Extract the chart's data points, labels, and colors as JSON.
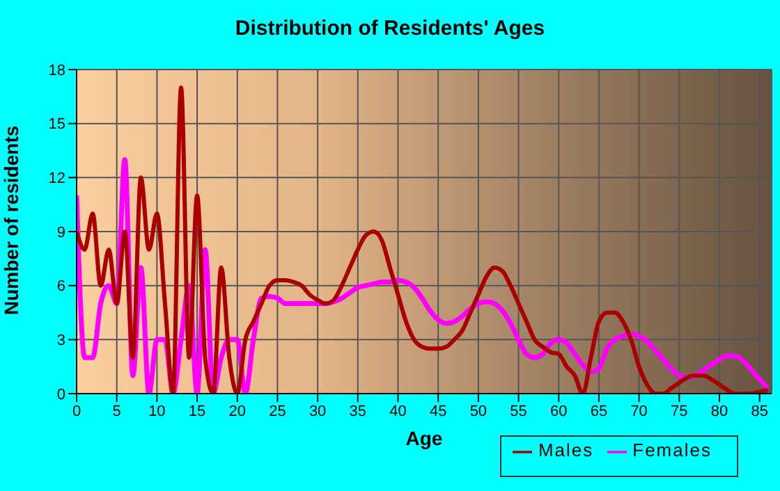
{
  "chart_data": {
    "type": "line",
    "title": "Distribution of Residents' Ages",
    "xlabel": "Age",
    "ylabel": "Number of residents",
    "x": [
      0,
      1,
      2,
      3,
      4,
      5,
      6,
      7,
      8,
      9,
      10,
      11,
      12,
      13,
      14,
      15,
      16,
      17,
      18,
      19,
      20,
      21,
      22,
      23,
      24,
      25,
      26,
      27,
      28,
      29,
      30,
      31,
      32,
      33,
      34,
      35,
      36,
      37,
      38,
      39,
      40,
      41,
      42,
      43,
      44,
      45,
      46,
      47,
      48,
      49,
      50,
      51,
      52,
      53,
      54,
      55,
      56,
      57,
      58,
      59,
      60,
      61,
      62,
      63,
      64,
      65,
      66,
      67,
      68,
      69,
      70,
      71,
      72,
      73,
      74,
      75,
      76,
      77,
      78,
      79,
      80,
      81,
      82,
      83,
      84,
      85,
      86
    ],
    "series": [
      {
        "name": "Males",
        "color": "#aa0000",
        "values": [
          9,
          8,
          10,
          6,
          8,
          5,
          9,
          2,
          12,
          8,
          10,
          5,
          0,
          17,
          2,
          11,
          2,
          0,
          7,
          2,
          0,
          3,
          4,
          5,
          6,
          6.3,
          6.3,
          6.2,
          6,
          5.5,
          5.2,
          5,
          5.2,
          6,
          7,
          8,
          8.8,
          9,
          8.5,
          7,
          5.5,
          4,
          3,
          2.6,
          2.5,
          2.5,
          2.6,
          3,
          3.5,
          4.5,
          5.5,
          6.5,
          7,
          6.8,
          6,
          5,
          4,
          3,
          2.6,
          2.3,
          2.2,
          1.5,
          1,
          0,
          2,
          4,
          4.5,
          4.5,
          4,
          3,
          1.5,
          0.5,
          0,
          0,
          0.3,
          0.6,
          0.9,
          1,
          1,
          0.8,
          0.5,
          0.2,
          0,
          0,
          0,
          0.1,
          0.2
        ]
      },
      {
        "name": "Females",
        "color": "#ff00ff",
        "values": [
          11,
          2,
          2,
          5,
          6,
          5,
          13,
          1,
          7,
          0,
          3,
          3,
          0,
          3,
          6,
          0,
          8,
          0,
          2,
          3,
          3,
          0,
          3,
          5.3,
          5.4,
          5.3,
          5,
          5,
          5,
          5,
          5,
          5,
          5.1,
          5.3,
          5.6,
          5.9,
          6,
          6.1,
          6.2,
          6.2,
          6.3,
          6.2,
          5.9,
          5.3,
          4.6,
          4.1,
          3.9,
          4,
          4.3,
          4.7,
          5,
          5.1,
          5,
          4.6,
          3.9,
          3,
          2.2,
          2,
          2.2,
          2.8,
          3,
          2.8,
          2.2,
          1.6,
          1.2,
          1.4,
          2.5,
          3,
          3.2,
          3.3,
          3.2,
          2.9,
          2.4,
          1.9,
          1.4,
          1,
          0.9,
          1,
          1.3,
          1.6,
          1.9,
          2.1,
          2.1,
          1.8,
          1.3,
          0.8,
          0.3
        ]
      }
    ],
    "xlim": [
      0,
      86.5
    ],
    "xticks": [
      0,
      5,
      10,
      15,
      20,
      25,
      30,
      35,
      40,
      45,
      50,
      55,
      60,
      65,
      70,
      75,
      80,
      85
    ],
    "ylim": [
      0,
      18
    ],
    "yticks": [
      0,
      3,
      6,
      9,
      12,
      15,
      18
    ],
    "grid": true,
    "legend": "bottom right",
    "marker": "none",
    "line_style": "solid"
  }
}
